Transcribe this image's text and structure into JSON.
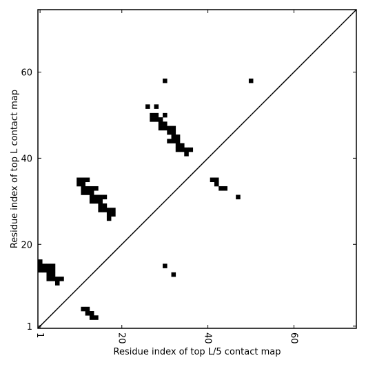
{
  "chart_data": {
    "type": "scatter",
    "xlabel": "Residue index of top L/5 contact map",
    "ylabel": "Residue index of top L contact map",
    "color": "#000000",
    "x": [
      30,
      50,
      26,
      28,
      30,
      27,
      28,
      27,
      28,
      29,
      29,
      30,
      29,
      30,
      31,
      32,
      31,
      32,
      32,
      33,
      31,
      32,
      33,
      33,
      34,
      33,
      34,
      35,
      36,
      35,
      10,
      11,
      12,
      10,
      11,
      11,
      12,
      13,
      14,
      11,
      12,
      13,
      13,
      14,
      15,
      16,
      13,
      14,
      15,
      15,
      16,
      15,
      16,
      17,
      18,
      17,
      18,
      17,
      41,
      42,
      42,
      43,
      44,
      47,
      1,
      1,
      2,
      3,
      4,
      1,
      2,
      3,
      4,
      3,
      4,
      3,
      4,
      5,
      6,
      5,
      30,
      32,
      11,
      12,
      12,
      13,
      13,
      14
    ],
    "y": [
      58,
      58,
      52,
      52,
      50,
      50,
      50,
      49,
      49,
      49,
      48,
      48,
      47,
      47,
      47,
      47,
      46,
      46,
      45,
      45,
      44,
      44,
      44,
      43,
      43,
      42,
      42,
      42,
      42,
      41,
      35,
      35,
      35,
      34,
      34,
      33,
      33,
      33,
      33,
      32,
      32,
      32,
      31,
      31,
      31,
      31,
      30,
      30,
      30,
      29,
      29,
      28,
      28,
      28,
      28,
      27,
      27,
      26,
      35,
      35,
      34,
      33,
      33,
      31,
      16,
      15,
      15,
      15,
      15,
      14,
      14,
      14,
      14,
      13,
      13,
      12,
      12,
      12,
      12,
      11,
      15,
      13,
      5,
      5,
      4,
      4,
      3,
      3
    ],
    "xlim": [
      0.5,
      74.5
    ],
    "ylim": [
      0.5,
      74.5
    ],
    "xticks": [
      1,
      20,
      40,
      60
    ],
    "yticks": [
      1,
      20,
      40,
      60
    ],
    "diagonal": true
  }
}
